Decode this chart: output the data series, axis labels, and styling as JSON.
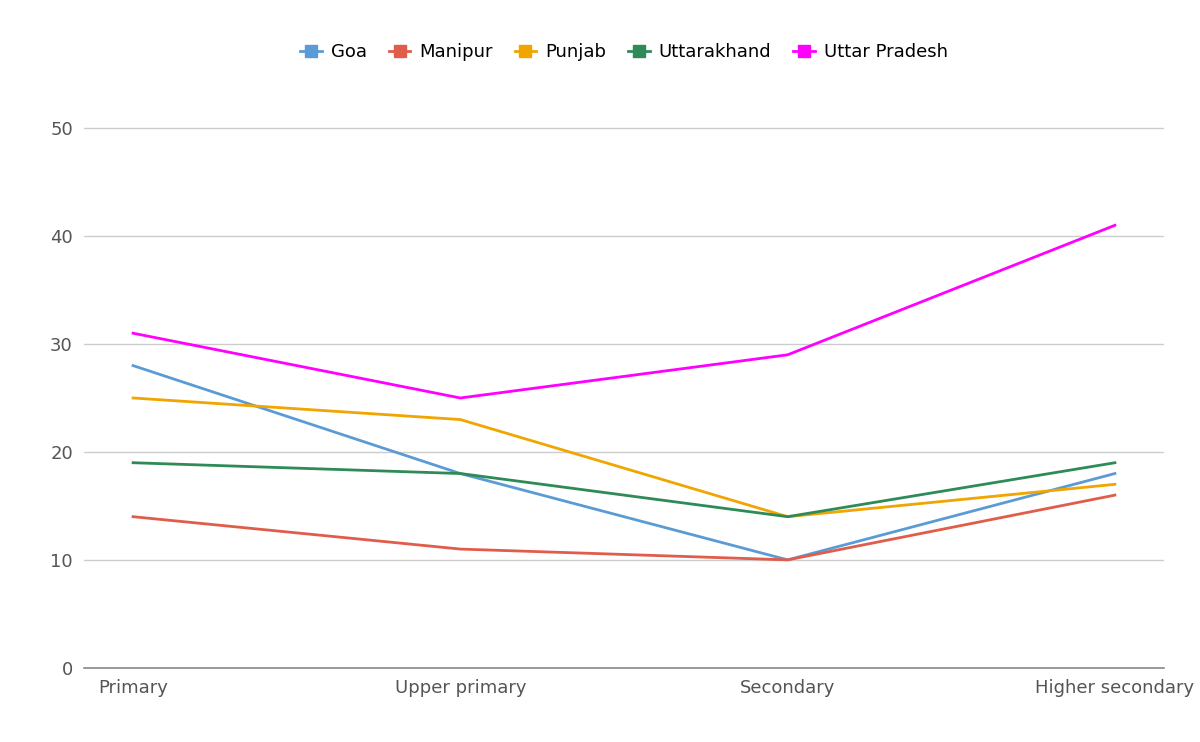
{
  "categories": [
    "Primary",
    "Upper primary",
    "Secondary",
    "Higher secondary"
  ],
  "series": [
    {
      "label": "Goa",
      "color": "#5b9bd5",
      "values": [
        28,
        18,
        10,
        18
      ]
    },
    {
      "label": "Manipur",
      "color": "#e05c4b",
      "values": [
        14,
        11,
        10,
        16
      ]
    },
    {
      "label": "Punjab",
      "color": "#f0a500",
      "values": [
        25,
        23,
        14,
        17
      ]
    },
    {
      "label": "Uttarakhand",
      "color": "#2e8b57",
      "values": [
        19,
        18,
        14,
        19
      ]
    },
    {
      "label": "Uttar Pradesh",
      "color": "#ff00ff",
      "values": [
        31,
        25,
        29,
        41
      ]
    }
  ],
  "ylim": [
    0,
    55
  ],
  "yticks": [
    0,
    10,
    20,
    30,
    40,
    50
  ],
  "background_color": "#ffffff",
  "grid_color": "#cccccc",
  "figsize": [
    12.0,
    7.42
  ],
  "dpi": 100,
  "legend_marker": "s",
  "legend_markersize": 8,
  "linewidth": 2.0,
  "tick_fontsize": 13,
  "legend_fontsize": 13
}
